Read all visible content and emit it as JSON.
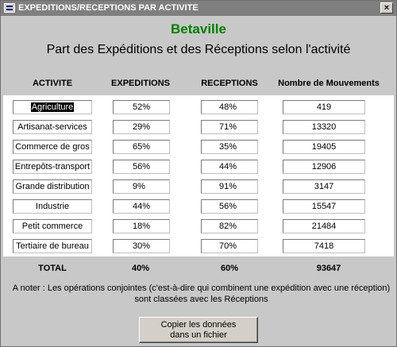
{
  "window": {
    "title": "EXPEDITIONS/RECEPTIONS PAR ACTIVITE",
    "close_symbol": "×"
  },
  "header": {
    "city": "Betaville",
    "subtitle": "Part des Expéditions et des Réceptions selon l'activité"
  },
  "columns": {
    "activite": "ACTIVITE",
    "expeditions": "EXPEDITIONS",
    "receptions": "RECEPTIONS",
    "mouvements": "Nombre de Mouvements"
  },
  "rows": [
    {
      "activite": "Agriculture",
      "expeditions": "52%",
      "receptions": "48%",
      "mouvements": "419"
    },
    {
      "activite": "Artisanat-services",
      "expeditions": "29%",
      "receptions": "71%",
      "mouvements": "13320"
    },
    {
      "activite": "Commerce de gros",
      "expeditions": "65%",
      "receptions": "35%",
      "mouvements": "19405"
    },
    {
      "activite": "Entrepôts-transport",
      "expeditions": "56%",
      "receptions": "44%",
      "mouvements": "12906"
    },
    {
      "activite": "Grande distribution",
      "expeditions": "9%",
      "receptions": "91%",
      "mouvements": "3147"
    },
    {
      "activite": "Industrie",
      "expeditions": "44%",
      "receptions": "56%",
      "mouvements": "15547"
    },
    {
      "activite": "Petit commerce",
      "expeditions": "18%",
      "receptions": "82%",
      "mouvements": "21484"
    },
    {
      "activite": "Tertiaire de bureau",
      "expeditions": "30%",
      "receptions": "70%",
      "mouvements": "7418"
    }
  ],
  "total": {
    "label": "TOTAL",
    "expeditions": "40%",
    "receptions": "60%",
    "mouvements": "93647"
  },
  "note": "A noter : Les opérations conjointes (c'est-à-dire qui combinent une expédition avec une réception) sont classées avec les Réceptions",
  "button": {
    "line1": "Copier les données",
    "line2": "dans un fichier"
  },
  "colors": {
    "title_bar": "#7f7f7f",
    "form_background": "#c8c8c8",
    "city_green": "#008000"
  },
  "icons": {
    "app": "table-form-icon",
    "close": "close-icon"
  }
}
